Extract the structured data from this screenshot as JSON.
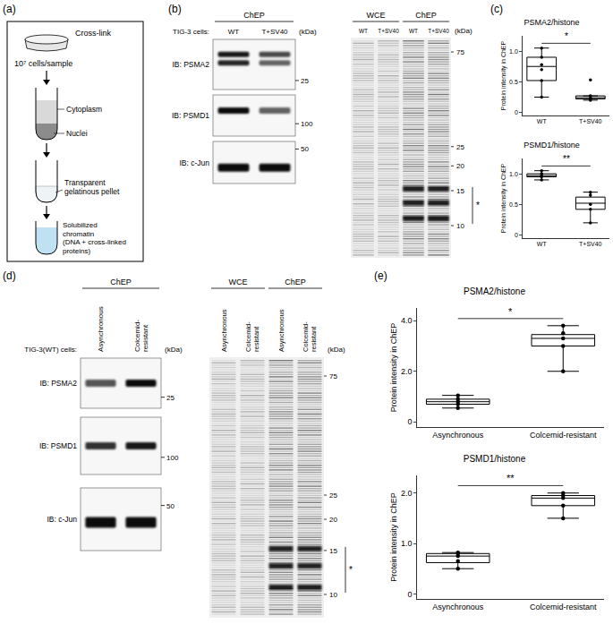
{
  "figure": {
    "a": {
      "label": "(a)",
      "cross_link": "Cross-link",
      "cells": "10⁷ cells/sample",
      "cytoplasm": "Cytoplasm",
      "nuclei": "Nuclei",
      "pellet": [
        "Transparent",
        "gelatinous pellet"
      ],
      "chromatin": [
        "Solubilized",
        "chromatin",
        "(DNA + cross-linked",
        "proteins)"
      ]
    },
    "b": {
      "label": "(b)",
      "blot": {
        "header": "ChEP",
        "cells": "TIG-3 cells:",
        "lanes": [
          [
            "WT"
          ],
          [
            "T+SV40"
          ]
        ],
        "kda": "(kDa)",
        "rows": [
          {
            "label": "IB: PSMA2",
            "marker": 25
          },
          {
            "label": "IB: PSMD1",
            "marker": 100
          },
          {
            "label": "IB: c-Jun",
            "marker": 50
          }
        ]
      },
      "gel": {
        "groups": [
          {
            "title": "WCE",
            "lanes": [
              [
                "WT"
              ],
              [
                "T+SV40"
              ]
            ]
          },
          {
            "title": "ChEP",
            "lanes": [
              [
                "WT"
              ],
              [
                "T+SV40"
              ]
            ]
          }
        ],
        "kda": "(kDa)",
        "markers": [
          75,
          25,
          20,
          15,
          10
        ],
        "histone_mark": "*"
      }
    },
    "c": {
      "label": "(c)"
    },
    "d": {
      "label": "(d)",
      "blot": {
        "header": "ChEP",
        "cells": "TIG-3(WT) cells:",
        "lanes": [
          [
            "Asynchronous"
          ],
          [
            "Colcemid-",
            "resistant"
          ]
        ],
        "kda": "(kDa)",
        "rows": [
          {
            "label": "IB: PSMA2",
            "marker": 25
          },
          {
            "label": "IB: PSMD1",
            "marker": 100
          },
          {
            "label": "IB: c-Jun",
            "marker": 50
          }
        ]
      },
      "gel": {
        "groups": [
          {
            "title": "WCE",
            "lanes": [
              [
                "Asynchronous"
              ],
              [
                "Colcemid-",
                "resistant"
              ]
            ]
          },
          {
            "title": "ChEP",
            "lanes": [
              [
                "Asynchronous"
              ],
              [
                "Colcemid-",
                "resistant"
              ]
            ]
          }
        ],
        "kda": "(kDa)",
        "markers": [
          75,
          25,
          20,
          15,
          10
        ],
        "histone_mark": "*"
      }
    },
    "e": {
      "label": "(e)"
    }
  },
  "chart_data": [
    {
      "type": "box",
      "title": "PSMA2/histone",
      "y_label": "Protein intensity in ChEP",
      "categories": [
        "WT",
        "T+SV40"
      ],
      "boxes": [
        {
          "q1": 0.52,
          "median": 0.75,
          "q3": 0.9,
          "lower": 0.25,
          "upper": 1.05,
          "points": [
            0.25,
            0.52,
            0.7,
            0.78,
            0.9,
            1.05
          ]
        },
        {
          "q1": 0.22,
          "median": 0.24,
          "q3": 0.27,
          "lower": 0.2,
          "upper": 0.27,
          "points": [
            0.2,
            0.22,
            0.24,
            0.27,
            0.53
          ]
        }
      ],
      "ylim": [
        -0.05,
        1.25
      ],
      "yticks": [
        0,
        0.5,
        {
          "value": 1,
          "label": "1.0"
        }
      ],
      "annotations": [
        {
          "text": "*",
          "from": "WT",
          "to": "T+SV40"
        }
      ]
    },
    {
      "type": "box",
      "title": "PSMD1/histone",
      "y_label": "Protein intensity in ChEP",
      "categories": [
        "WT",
        "T+SV40"
      ],
      "boxes": [
        {
          "q1": 0.95,
          "median": 0.97,
          "q3": 1.0,
          "lower": 0.9,
          "upper": 1.05,
          "points": [
            0.9,
            0.95,
            0.97,
            1.0,
            1.05
          ]
        },
        {
          "q1": 0.42,
          "median": 0.52,
          "q3": 0.62,
          "lower": 0.2,
          "upper": 0.7,
          "points": [
            0.2,
            0.42,
            0.5,
            0.65,
            0.7
          ]
        }
      ],
      "ylim": [
        -0.05,
        1.25
      ],
      "yticks": [
        0,
        0.5,
        {
          "value": 1,
          "label": "1.0"
        }
      ],
      "annotations": [
        {
          "text": "**",
          "from": "WT",
          "to": "T+SV40"
        }
      ]
    },
    {
      "type": "box",
      "title": "PSMA2/histone",
      "y_label": "Protein intensity in ChEP",
      "categories": [
        "Asynchronous",
        "Colcemid-resistant"
      ],
      "boxes": [
        {
          "q1": 0.7,
          "median": 0.8,
          "q3": 0.9,
          "lower": 0.55,
          "upper": 1.05,
          "points": [
            0.55,
            0.7,
            0.8,
            0.9,
            1.05
          ]
        },
        {
          "q1": 3.0,
          "median": 3.3,
          "q3": 3.45,
          "lower": 2.0,
          "upper": 3.8,
          "points": [
            2.0,
            3.0,
            3.3,
            3.5,
            3.8
          ]
        }
      ],
      "ylim": [
        -0.2,
        4.5
      ],
      "yticks": [
        0,
        {
          "value": 2,
          "label": "2.0"
        },
        {
          "value": 4,
          "label": "4.0"
        }
      ],
      "annotations": [
        {
          "text": "*",
          "from": "Asynchronous",
          "to": "Colcemid-resistant"
        }
      ]
    },
    {
      "type": "box",
      "title": "PSMD1/histone",
      "y_label": "Protein intensity in ChEP",
      "categories": [
        "Asynchronous",
        "Colcemid-resistant"
      ],
      "boxes": [
        {
          "q1": 0.62,
          "median": 0.75,
          "q3": 0.8,
          "lower": 0.5,
          "upper": 0.82,
          "points": [
            0.5,
            0.65,
            0.75,
            0.8,
            0.82
          ]
        },
        {
          "q1": 1.75,
          "median": 1.9,
          "q3": 1.95,
          "lower": 1.5,
          "upper": 2.0,
          "points": [
            1.5,
            1.75,
            1.9,
            1.95,
            2.0
          ]
        }
      ],
      "ylim": [
        -0.1,
        2.35
      ],
      "yticks": [
        0,
        {
          "value": 1,
          "label": "1.0"
        },
        {
          "value": 2,
          "label": "2.0"
        }
      ],
      "annotations": [
        {
          "text": "**",
          "from": "Asynchronous",
          "to": "Colcemid-resistant"
        }
      ]
    }
  ]
}
